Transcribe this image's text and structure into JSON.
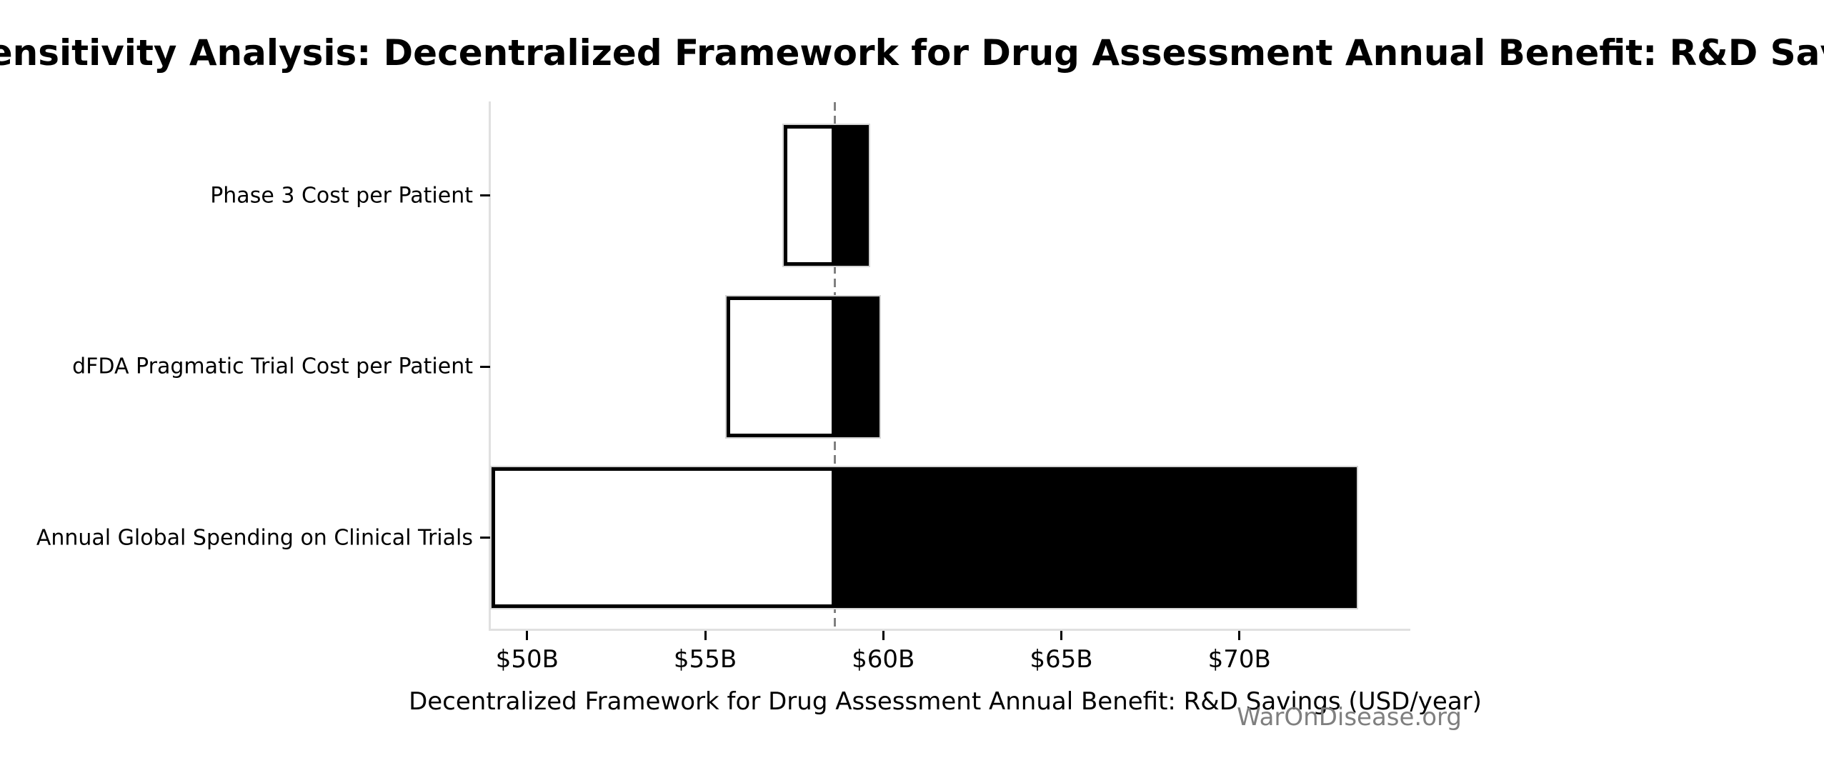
{
  "watermark": "WarOnDisease.org",
  "chart_data": {
    "type": "bar",
    "orientation": "horizontal",
    "variant": "tornado-sensitivity",
    "title": "Sensitivity Analysis: Decentralized Framework for Drug Assessment Annual Benefit: R&D Savings",
    "xlabel": "Decentralized Framework for Drug Assessment Annual Benefit: R&D Savings (USD/year)",
    "categories": [
      "Phase 3 Cost per Patient",
      "dFDA Pragmatic Trial Cost per Patient",
      "Annual Global Spending on Clinical Trials"
    ],
    "baseline_value": 58.65,
    "series": [
      {
        "name": "low_estimate",
        "fill": "white",
        "values": [
          57.2,
          55.6,
          49.0
        ]
      },
      {
        "name": "high_estimate",
        "fill": "black",
        "values": [
          59.6,
          59.9,
          73.3
        ]
      }
    ],
    "xlim": [
      49.0,
      74.5
    ],
    "xticks": {
      "values": [
        50,
        55,
        60,
        65,
        70
      ],
      "labels": [
        "$50B",
        "$55B",
        "$60B",
        "$65B",
        "$70B"
      ]
    },
    "units": "USD billions per year",
    "grid": false,
    "legend": false,
    "baseline_style": "dashed",
    "colors": {
      "low_fill": "#ffffff",
      "low_edge": "#000000",
      "high_fill": "#000000",
      "bar_outline": "#d4d4d4",
      "spine": "#e0e0e0",
      "tick": "#000000",
      "baseline_line": "#808080",
      "watermark": "#7f7f7f",
      "text": "#000000"
    }
  }
}
